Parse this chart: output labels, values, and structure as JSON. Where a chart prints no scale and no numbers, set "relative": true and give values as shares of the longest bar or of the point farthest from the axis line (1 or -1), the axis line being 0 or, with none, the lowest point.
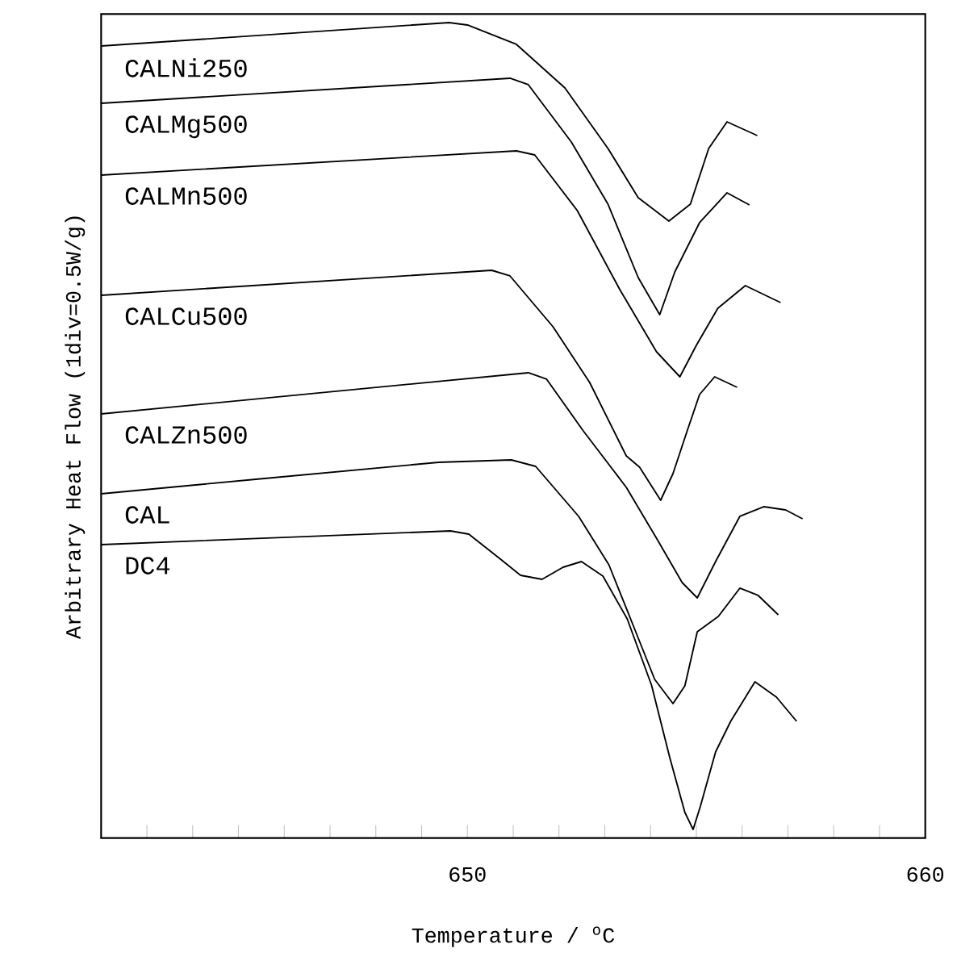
{
  "chart_data": {
    "type": "line",
    "relative": true,
    "xlabel": "Temperature / $^{o}$C",
    "ylabel": "Arbitrary Heat Flow (1div=0.5W/g)",
    "xlim": [
      642,
      660
    ],
    "xticks": [
      {
        "value": 642,
        "label": null
      },
      {
        "value": 643,
        "label": null
      },
      {
        "value": 644,
        "label": null
      },
      {
        "value": 645,
        "label": null
      },
      {
        "value": 646,
        "label": null
      },
      {
        "value": 647,
        "label": null
      },
      {
        "value": 648,
        "label": null
      },
      {
        "value": 649,
        "label": null
      },
      650,
      {
        "value": 651,
        "label": null
      },
      {
        "value": 652,
        "label": null
      },
      {
        "value": 653,
        "label": null
      },
      {
        "value": 654,
        "label": null
      },
      {
        "value": 655,
        "label": null
      },
      {
        "value": 656,
        "label": null
      },
      {
        "value": 657,
        "label": null
      },
      {
        "value": 658,
        "label": null
      },
      {
        "value": 659,
        "label": null
      },
      660
    ],
    "marker": "none",
    "line_style": "solid",
    "grid": false,
    "legend": false,
    "series": [
      {
        "name": "CALNi250",
        "color": "#000000",
        "x": [
          642,
          649.6,
          650,
          651.07,
          652.13,
          653.07,
          653.73,
          654.4,
          654.87,
          655.27,
          655.67,
          656.33
        ],
        "values": [
          0.971,
          1,
          0.997,
          0.973,
          0.919,
          0.844,
          0.783,
          0.754,
          0.775,
          0.844,
          0.877,
          0.86
        ]
      },
      {
        "name": "CALMg500",
        "color": "#000000",
        "x": [
          642,
          650.93,
          651.33,
          652.27,
          653.07,
          653.73,
          654.2,
          654.53,
          655.07,
          655.67,
          656.16
        ],
        "values": [
          0.9,
          0.931,
          0.923,
          0.852,
          0.775,
          0.684,
          0.638,
          0.691,
          0.752,
          0.789,
          0.774
        ]
      },
      {
        "name": "CALMn500",
        "color": "#000000",
        "x": [
          642,
          651.07,
          651.47,
          652.4,
          653.33,
          654.13,
          654.64,
          655.0,
          655.47,
          656.07,
          656.84
        ],
        "values": [
          0.811,
          0.841,
          0.836,
          0.767,
          0.669,
          0.592,
          0.561,
          0.6,
          0.646,
          0.674,
          0.653
        ]
      },
      {
        "name": "CALCu500",
        "color": "#000000",
        "x": [
          642,
          650.53,
          650.93,
          651.87,
          652.67,
          653.47,
          653.76,
          654.22,
          654.49,
          654.8,
          655.07,
          655.4,
          655.89
        ],
        "values": [
          0.662,
          0.693,
          0.686,
          0.623,
          0.554,
          0.463,
          0.449,
          0.408,
          0.441,
          0.494,
          0.539,
          0.561,
          0.548
        ]
      },
      {
        "name": "CALZn500",
        "color": "#000000",
        "x": [
          642,
          651.33,
          651.73,
          652.53,
          653.47,
          654.15,
          654.69,
          655.02,
          655.42,
          655.95,
          656.48,
          656.95,
          657.32
        ],
        "values": [
          0.515,
          0.566,
          0.558,
          0.494,
          0.424,
          0.359,
          0.306,
          0.287,
          0.332,
          0.388,
          0.4,
          0.396,
          0.385
        ]
      },
      {
        "name": "CAL",
        "color": "#000000",
        "x": [
          642,
          645.38,
          649.37,
          650.96,
          651.49,
          652.43,
          653.09,
          653.62,
          654.09,
          654.49,
          654.75,
          655.02,
          655.48,
          655.95,
          656.35,
          656.79
        ],
        "values": [
          0.416,
          0.434,
          0.455,
          0.458,
          0.45,
          0.388,
          0.328,
          0.253,
          0.186,
          0.156,
          0.178,
          0.245,
          0.264,
          0.299,
          0.29,
          0.266
        ]
      },
      {
        "name": "DC4",
        "color": "#000000",
        "x": [
          642,
          649.63,
          650.03,
          650.7,
          651.16,
          651.63,
          652.09,
          652.49,
          652.96,
          653.49,
          654.02,
          654.42,
          654.75,
          654.93,
          655.09,
          655.42,
          655.75,
          656.28,
          656.75,
          657.19
        ],
        "values": [
          0.353,
          0.37,
          0.366,
          0.336,
          0.315,
          0.31,
          0.325,
          0.332,
          0.314,
          0.261,
          0.179,
          0.089,
          0.021,
          0,
          0.029,
          0.096,
          0.134,
          0.183,
          0.164,
          0.134
        ]
      }
    ]
  }
}
